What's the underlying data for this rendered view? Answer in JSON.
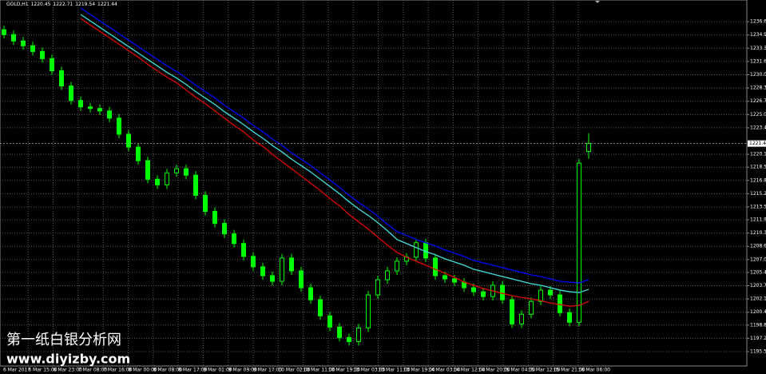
{
  "chart_data": {
    "type": "candlestick",
    "title": "GOLD,H1",
    "color": "#00ff00",
    "open": [
      1235.6,
      1235.0,
      1234.2,
      1233.6,
      1232.9,
      1232.0,
      1230.5,
      1228.6,
      1226.8,
      1226.0,
      1225.8,
      1225.5,
      1224.6,
      1222.6,
      1221.0,
      1219.3,
      1217.0,
      1216.3,
      1217.8,
      1218.3,
      1217.5,
      1215.0,
      1213.0,
      1211.5,
      1210.2,
      1209.0,
      1207.4,
      1206.1,
      1205.0,
      1204.3,
      1207.2,
      1205.6,
      1203.5,
      1202.0,
      1200.0,
      1198.6,
      1197.3,
      1196.8,
      1198.5,
      1202.6,
      1204.5,
      1205.6,
      1206.8,
      1207.3,
      1209.1,
      1207.2,
      1205.0,
      1204.6,
      1204.2,
      1203.5,
      1203.0,
      1202.4,
      1203.8,
      1202.0,
      1199.0,
      1200.2,
      1201.8,
      1203.2,
      1202.6,
      1200.4,
      1199.2,
      1220.45
    ],
    "high": [
      1236.1,
      1235.5,
      1234.7,
      1234.1,
      1233.4,
      1232.5,
      1231.0,
      1229.1,
      1227.3,
      1226.5,
      1226.3,
      1226.0,
      1225.1,
      1223.1,
      1221.5,
      1219.8,
      1217.5,
      1218.3,
      1218.8,
      1218.8,
      1218.0,
      1215.5,
      1213.5,
      1212.0,
      1210.7,
      1209.5,
      1207.9,
      1206.6,
      1205.5,
      1207.7,
      1207.7,
      1206.1,
      1204.0,
      1202.5,
      1200.5,
      1199.1,
      1197.8,
      1199.0,
      1203.1,
      1205.0,
      1206.1,
      1207.3,
      1207.8,
      1209.6,
      1209.6,
      1207.7,
      1205.5,
      1205.1,
      1204.7,
      1204.0,
      1203.5,
      1204.3,
      1204.3,
      1202.5,
      1200.7,
      1202.3,
      1203.7,
      1203.7,
      1203.1,
      1200.9,
      1219.5,
      1222.71
    ],
    "low": [
      1234.5,
      1233.7,
      1233.1,
      1232.4,
      1231.5,
      1230.0,
      1228.1,
      1226.3,
      1225.5,
      1225.3,
      1225.0,
      1224.1,
      1222.1,
      1220.5,
      1218.8,
      1216.5,
      1215.8,
      1215.8,
      1217.3,
      1217.0,
      1214.5,
      1212.5,
      1211.0,
      1209.7,
      1208.5,
      1206.9,
      1205.6,
      1204.5,
      1203.8,
      1203.8,
      1205.1,
      1203.0,
      1201.5,
      1199.5,
      1198.1,
      1196.8,
      1196.3,
      1196.3,
      1198.0,
      1202.1,
      1204.0,
      1205.1,
      1206.3,
      1206.8,
      1206.7,
      1204.5,
      1204.1,
      1203.7,
      1203.0,
      1202.5,
      1201.9,
      1201.9,
      1201.5,
      1198.5,
      1198.5,
      1199.7,
      1201.3,
      1202.1,
      1199.9,
      1198.7,
      1198.7,
      1219.54
    ],
    "close": [
      1235.0,
      1234.2,
      1233.6,
      1232.9,
      1232.0,
      1230.5,
      1228.6,
      1226.8,
      1226.0,
      1225.8,
      1225.5,
      1224.6,
      1222.6,
      1221.0,
      1219.3,
      1217.0,
      1216.3,
      1217.8,
      1218.3,
      1217.5,
      1215.0,
      1213.0,
      1211.5,
      1210.2,
      1209.0,
      1207.4,
      1206.1,
      1205.0,
      1204.3,
      1207.2,
      1205.6,
      1203.5,
      1202.0,
      1200.0,
      1198.6,
      1197.3,
      1196.8,
      1198.5,
      1202.6,
      1204.5,
      1205.6,
      1206.8,
      1207.3,
      1209.1,
      1207.2,
      1205.0,
      1204.6,
      1204.2,
      1203.5,
      1203.0,
      1202.4,
      1203.8,
      1202.0,
      1199.0,
      1200.2,
      1201.8,
      1203.2,
      1202.6,
      1200.4,
      1199.2,
      1219.0,
      1221.44
    ],
    "series": [
      {
        "color": "#0000ff",
        "values": [
          null,
          null,
          null,
          null,
          null,
          null,
          null,
          null,
          1238.3,
          1237.5,
          1236.7,
          1235.9,
          1235.1,
          1234.3,
          1233.5,
          1232.7,
          1231.9,
          1231.1,
          1230.4,
          1229.6,
          1228.7,
          1227.9,
          1227.1,
          1226.2,
          1225.4,
          1224.6,
          1223.7,
          1222.9,
          1222.0,
          1221.2,
          1220.3,
          1219.5,
          1218.7,
          1217.8,
          1216.9,
          1216.0,
          1215.0,
          1214.1,
          1213.3,
          1212.4,
          1211.4,
          1210.5,
          1210.0,
          1209.5,
          1209.1,
          1208.7,
          1208.2,
          1207.8,
          1207.4,
          1206.9,
          1206.6,
          1206.3,
          1206.0,
          1205.7,
          1205.4,
          1205.1,
          1204.9,
          1204.6,
          1204.3,
          1204.2,
          1204.1,
          1204.5
        ]
      },
      {
        "color": "#40e0e0",
        "values": [
          null,
          null,
          null,
          null,
          null,
          null,
          null,
          null,
          1237.5,
          1236.7,
          1235.9,
          1235.1,
          1234.3,
          1233.5,
          1232.7,
          1231.9,
          1231.1,
          1230.3,
          1229.6,
          1228.8,
          1227.9,
          1227.1,
          1226.3,
          1225.4,
          1224.6,
          1223.8,
          1222.9,
          1222.1,
          1221.2,
          1220.4,
          1219.5,
          1218.7,
          1217.9,
          1217.0,
          1216.1,
          1215.2,
          1214.2,
          1213.3,
          1212.5,
          1211.6,
          1210.6,
          1209.5,
          1209.0,
          1208.5,
          1208.0,
          1207.6,
          1207.1,
          1206.7,
          1206.3,
          1205.8,
          1205.5,
          1205.2,
          1204.9,
          1204.6,
          1204.3,
          1204.0,
          1203.8,
          1203.5,
          1203.2,
          1203.0,
          1202.9,
          1203.3
        ]
      },
      {
        "color": "#e00000",
        "values": [
          null,
          null,
          null,
          null,
          null,
          null,
          null,
          null,
          1237.0,
          1236.2,
          1235.4,
          1234.6,
          1233.8,
          1233.0,
          1232.2,
          1231.3,
          1230.5,
          1229.7,
          1229.0,
          1228.1,
          1227.2,
          1226.4,
          1225.5,
          1224.6,
          1223.7,
          1222.9,
          1221.9,
          1221.1,
          1220.1,
          1219.2,
          1218.3,
          1217.4,
          1216.5,
          1215.6,
          1214.6,
          1213.7,
          1212.6,
          1211.7,
          1210.8,
          1209.8,
          1208.8,
          1207.9,
          1207.3,
          1206.8,
          1206.3,
          1205.8,
          1205.3,
          1204.8,
          1204.2,
          1203.8,
          1203.4,
          1203.1,
          1202.8,
          1202.5,
          1202.3,
          1202.1,
          1201.9,
          1201.6,
          1201.4,
          1201.2,
          1201.3,
          1201.8
        ]
      }
    ],
    "ylim": [
      1193.76,
      1239.3
    ],
    "yticks": [
      1195.55,
      {
        "value": 1197.2,
        "label": "1197.20"
      },
      1198.85,
      1200.45,
      {
        "value": 1202.1,
        "label": "1202.10"
      },
      1203.75,
      {
        "value": 1205.4,
        "label": "1205.40"
      },
      {
        "value": 1207.0,
        "label": "1207.00"
      },
      1208.65,
      {
        "value": 1210.3,
        "label": "1210.30"
      },
      1211.95,
      1213.55,
      {
        "value": 1215.2,
        "label": "1215.20"
      },
      1216.85,
      {
        "value": 1218.5,
        "label": "1218.50"
      },
      {
        "value": 1220.1,
        "label": "1220.10"
      },
      {
        "value": 1223.4,
        "label": "1223.40"
      },
      1225.05,
      {
        "value": 1226.7,
        "label": "1226.70"
      },
      1228.35,
      {
        "value": 1230.0,
        "label": "1230.00"
      },
      1231.65,
      {
        "value": 1233.3,
        "label": "1233.30"
      },
      1234.95,
      {
        "value": 1236.6,
        "label": "1236.60"
      }
    ],
    "xticks": [
      "6 Mar 2017",
      "6 Mar 15:00",
      "6 Mar 23:00",
      "7 Mar 08:00",
      "7 Mar 16:00",
      "8 Mar 00:00",
      "8 Mar 08:00",
      "8 Mar 17:00",
      "9 Mar 01:00",
      "9 Mar 09:00",
      "9 Mar 17:00",
      "10 Mar 02:00",
      "10 Mar 11:00",
      "10 Mar 19:00",
      "13 Mar 03:00",
      "13 Mar 11:00",
      "13 Mar 19:00",
      "14 Mar 03:00",
      "14 Mar 12:00",
      "14 Mar 20:00",
      "15 Mar 04:00",
      "15 Mar 12:00",
      "15 Mar 21:00",
      "16 Mar 06:00"
    ],
    "grid": true,
    "watermark": [
      "第一纸白银分析网",
      "www.diyizby.com"
    ]
  }
}
